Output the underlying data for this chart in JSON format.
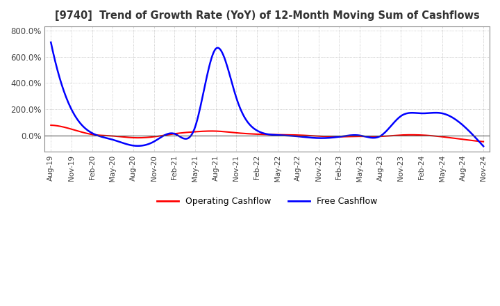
{
  "title": "[9740]  Trend of Growth Rate (YoY) of 12-Month Moving Sum of Cashflows",
  "ylim": [
    -120,
    830
  ],
  "yticks": [
    0,
    200,
    400,
    600,
    800
  ],
  "legend_labels": [
    "Operating Cashflow",
    "Free Cashflow"
  ],
  "background_color": "#ffffff",
  "grid_color": "#aaaaaa",
  "x_labels": [
    "Aug-19",
    "Nov-19",
    "Feb-20",
    "May-20",
    "Aug-20",
    "Nov-20",
    "Feb-21",
    "May-21",
    "Aug-21",
    "Nov-21",
    "Feb-22",
    "May-22",
    "Aug-22",
    "Nov-22",
    "Feb-23",
    "May-23",
    "Aug-23",
    "Nov-23",
    "Feb-24",
    "May-24",
    "Aug-24",
    "Nov-24"
  ],
  "operating_cf": [
    80,
    50,
    10,
    -2,
    -15,
    -8,
    15,
    30,
    35,
    22,
    12,
    8,
    5,
    -3,
    -8,
    -5,
    -5,
    5,
    5,
    -8,
    -28,
    -45
  ],
  "free_cf": [
    710,
    200,
    20,
    -30,
    -75,
    -45,
    15,
    65,
    660,
    290,
    40,
    5,
    -5,
    -18,
    -8,
    2,
    -2,
    150,
    170,
    170,
    80,
    -80
  ]
}
